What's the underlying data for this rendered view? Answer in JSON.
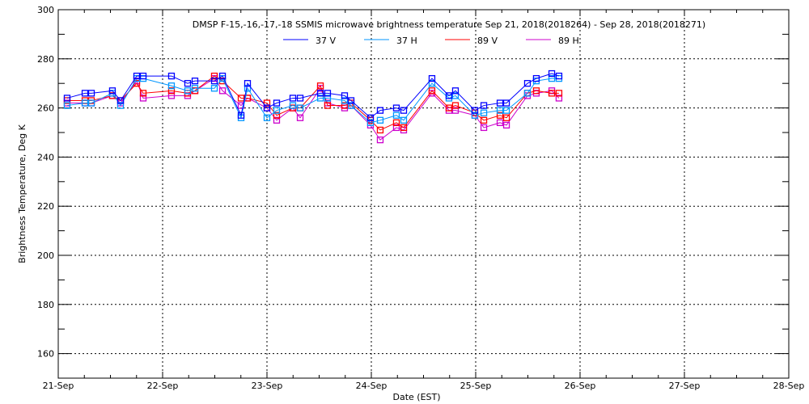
{
  "chart_data": {
    "type": "line",
    "title": "DMSP F-15,-16,-17,-18 SSMIS microwave brightness temperature Sep 21, 2018(2018264) - Sep 28, 2018(2018271)",
    "xlabel": "Date (EST)",
    "ylabel": "Brightness Temperature, Deg K",
    "xlim": [
      0,
      7
    ],
    "ylim": [
      150,
      300
    ],
    "xticks": [
      "21-Sep",
      "22-Sep",
      "23-Sep",
      "24-Sep",
      "25-Sep",
      "26-Sep",
      "27-Sep",
      "28-Sep"
    ],
    "yticks": [
      160,
      180,
      200,
      220,
      240,
      260,
      280,
      300
    ],
    "grid": true,
    "legend_position": "top-center",
    "x_days_since_sep21": [
      0.085,
      0.256,
      0.318,
      0.519,
      0.597,
      0.752,
      0.814,
      1.085,
      1.24,
      1.31,
      1.496,
      1.574,
      1.752,
      1.814,
      2.0,
      2.093,
      2.248,
      2.318,
      2.512,
      2.581,
      2.744,
      2.806,
      2.992,
      3.085,
      3.24,
      3.31,
      3.581,
      3.744,
      3.806,
      3.992,
      4.078,
      4.233,
      4.295,
      4.496,
      4.581,
      4.729,
      4.798
    ],
    "series": [
      {
        "name": "37 V",
        "color": "#0000ff",
        "values": [
          264,
          266,
          266,
          267,
          263,
          273,
          273,
          273,
          270,
          271,
          271,
          273,
          257,
          270,
          260,
          262,
          264,
          264,
          266,
          266,
          265,
          263,
          256,
          259,
          260,
          259,
          272,
          265,
          267,
          259,
          261,
          262,
          262,
          270,
          272,
          274,
          273
        ]
      },
      {
        "name": "37 H",
        "color": "#0096ff",
        "values": [
          261,
          262,
          262,
          266,
          261,
          272,
          272,
          269,
          267,
          268,
          268,
          272,
          256,
          268,
          256,
          259,
          261,
          260,
          264,
          264,
          263,
          261,
          254,
          255,
          257,
          255,
          270,
          264,
          265,
          257,
          258,
          259,
          259,
          266,
          271,
          272,
          272
        ]
      },
      {
        "name": "89 V",
        "color": "#ff0000",
        "values": [
          263,
          263,
          263,
          265,
          263,
          270,
          266,
          267,
          266,
          267,
          273,
          271,
          264,
          264,
          262,
          257,
          260,
          260,
          269,
          261,
          261,
          262,
          255,
          251,
          254,
          252,
          267,
          260,
          261,
          258,
          255,
          257,
          256,
          266,
          267,
          266,
          266
        ]
      },
      {
        "name": "89 H",
        "color": "#cc00cc",
        "values": [
          262,
          262,
          262,
          265,
          262,
          271,
          264,
          265,
          265,
          267,
          272,
          267,
          261,
          264,
          260,
          255,
          260,
          256,
          268,
          262,
          260,
          261,
          253,
          247,
          252,
          251,
          266,
          259,
          259,
          257,
          252,
          254,
          253,
          265,
          266,
          267,
          264
        ]
      }
    ]
  }
}
